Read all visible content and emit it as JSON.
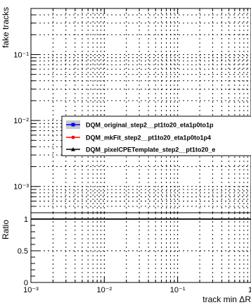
{
  "chart_data": [
    {
      "type": "line",
      "panel": "main",
      "ylabel": "fake tracks",
      "xscale": "log",
      "yscale": "log",
      "xlim": [
        0.001,
        1
      ],
      "ylim": [
        0.0004,
        0.5
      ],
      "grid": true,
      "legend_placement": "center-right",
      "x_ticks": [
        {
          "value": 0.001,
          "label": "10⁻³"
        },
        {
          "value": 0.01,
          "label": "10⁻²"
        },
        {
          "value": 0.1,
          "label": "10⁻¹"
        },
        {
          "value": 1,
          "label": "1"
        }
      ],
      "y_ticks": [
        {
          "value": 0.001,
          "label": "10⁻³"
        },
        {
          "value": 0.01,
          "label": "10⁻²"
        },
        {
          "value": 0.1,
          "label": "10⁻¹"
        }
      ],
      "series": [
        {
          "name": "DQM_original_step2__pt1to20_eta1p0to1p",
          "color": "#0000ff",
          "marker": "square",
          "band": true,
          "x": [],
          "y": []
        },
        {
          "name": "DQM_mkFit_step2__pt1to20_eta1p0to1p4",
          "color": "#ff0000",
          "marker": "circle",
          "band": false,
          "x": [],
          "y": []
        },
        {
          "name": "DQM_pixelCPETemplate_step2__pt1to20_e",
          "color": "#000000",
          "marker": "triangle",
          "band": false,
          "x": [],
          "y": []
        }
      ]
    },
    {
      "type": "line",
      "panel": "ratio",
      "xlabel": "track min ΔR",
      "ylabel": "Ratio",
      "xscale": "log",
      "xlim": [
        0.001,
        1
      ],
      "ylim": [
        0,
        1.1
      ],
      "grid": true,
      "x_ticks": [
        {
          "value": 0.001,
          "label": "10⁻³"
        },
        {
          "value": 0.01,
          "label": "10⁻²"
        },
        {
          "value": 0.1,
          "label": "10⁻¹"
        },
        {
          "value": 1,
          "label": "1"
        }
      ],
      "y_ticks": [
        {
          "value": 0,
          "label": "0"
        },
        {
          "value": 0.5,
          "label": "0.5"
        },
        {
          "value": 1,
          "label": "1"
        }
      ],
      "reference_line": 1,
      "series": []
    }
  ]
}
